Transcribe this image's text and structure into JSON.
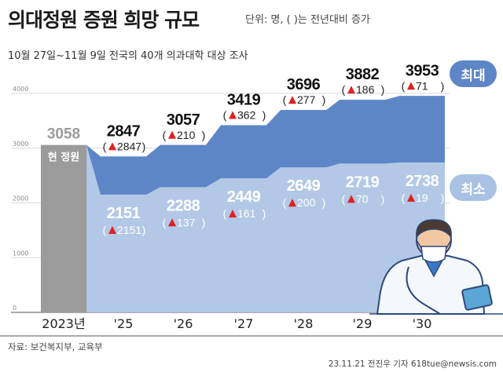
{
  "title": "의대정원 증원 희망 규모",
  "unit_note": "단위: 명, ( )는 전년대비 증가",
  "subtitle": "10월 27일~11월 9일 전국의 40개 의과대학 대상 조사",
  "source": "자료: 보건복지부, 교육부",
  "credit": "23.11.21 전진우 기자 618tue@newsis.com",
  "legend": {
    "max_label": "최대",
    "min_label": "최소"
  },
  "colors": {
    "max": "#5d86c7",
    "min": "#b3c8e6",
    "base": "#9b9b9b",
    "delta": "#e02020",
    "grid": "#d9d9d9"
  },
  "chart_data": {
    "type": "bar",
    "ylim": [
      0,
      4000
    ],
    "yticks": [
      "0",
      "1000",
      "2000",
      "3000",
      "4000"
    ],
    "grid": true,
    "legend_position": "right",
    "base": {
      "category": "2023년",
      "value": 3058,
      "value_label": "3058",
      "label": "현 정원"
    },
    "categories": [
      "'25",
      "'26",
      "'27",
      "'28",
      "'29",
      "'30"
    ],
    "series": [
      {
        "name": "최대",
        "values": [
          2847,
          3057,
          3419,
          3696,
          3882,
          3953
        ],
        "labels": [
          "2847",
          "3057",
          "3419",
          "3696",
          "3882",
          "3953"
        ],
        "deltas": [
          "2847",
          "210",
          "362",
          "277",
          "186",
          "71"
        ]
      },
      {
        "name": "최소",
        "values": [
          2151,
          2288,
          2449,
          2649,
          2719,
          2738
        ],
        "labels": [
          "2151",
          "2288",
          "2449",
          "2649",
          "2719",
          "2738"
        ],
        "deltas": [
          "2151",
          "137",
          "161",
          "200",
          "70",
          "19"
        ]
      }
    ]
  }
}
